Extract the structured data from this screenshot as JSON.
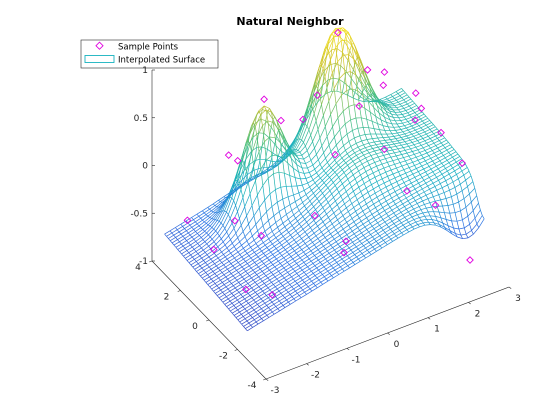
{
  "chart_data": {
    "type": "surface",
    "title": "Natural Neighbor",
    "legend": {
      "placement": "top-left",
      "entries": [
        {
          "label": "Sample Points",
          "marker": "diamond",
          "color": "#e000e0"
        },
        {
          "label": "Interpolated Surface",
          "marker": "line",
          "color": "#17b3bf"
        }
      ]
    },
    "xlim": [
      -3,
      3
    ],
    "ylim": [
      -4,
      4
    ],
    "zlim": [
      -1,
      1
    ],
    "x_ticks": [
      "-3",
      "-2",
      "-1",
      "0",
      "1",
      "2",
      "3"
    ],
    "y_ticks": [
      "-4",
      "-2",
      "0",
      "2",
      "4"
    ],
    "z_ticks": [
      "-1",
      "-0.5",
      "0",
      "0.5",
      "1"
    ],
    "colormap": [
      "#3e26a8",
      "#2c73e4",
      "#18b1c0",
      "#4ec07b",
      "#c9c131",
      "#f5e01f"
    ],
    "sample_points": [
      {
        "x": -2.9,
        "y": 1.8,
        "z": -0.25
      },
      {
        "x": -2.6,
        "y": 0.8,
        "z": -0.45
      },
      {
        "x": -2.3,
        "y": -0.6,
        "z": -0.7
      },
      {
        "x": -2.0,
        "y": -1.6,
        "z": -0.65
      },
      {
        "x": -1.8,
        "y": 1.6,
        "z": -0.4
      },
      {
        "x": -1.5,
        "y": 0.6,
        "z": -0.45
      },
      {
        "x": -1.6,
        "y": 2.6,
        "z": 0.1
      },
      {
        "x": -1.2,
        "y": 3.1,
        "z": -0.1
      },
      {
        "x": -0.9,
        "y": 2.1,
        "z": 0.65
      },
      {
        "x": -0.8,
        "y": 1.2,
        "z": 0.55
      },
      {
        "x": -0.6,
        "y": -0.6,
        "z": -0.2
      },
      {
        "x": -0.3,
        "y": -1.8,
        "z": -0.45
      },
      {
        "x": 0.2,
        "y": 2.5,
        "z": 0.2
      },
      {
        "x": 0.5,
        "y": 1.1,
        "z": 0.0
      },
      {
        "x": 0.1,
        "y": -0.8,
        "z": -0.55
      },
      {
        "x": 0.8,
        "y": 3.2,
        "z": 0.25
      },
      {
        "x": 1.1,
        "y": 2.6,
        "z": 0.95
      },
      {
        "x": 1.2,
        "y": 1.4,
        "z": 0.35
      },
      {
        "x": 1.4,
        "y": 0.2,
        "z": 0.05
      },
      {
        "x": 1.5,
        "y": -1.1,
        "z": -0.2
      },
      {
        "x": 1.9,
        "y": 2.8,
        "z": 0.4
      },
      {
        "x": 2.0,
        "y": 1.9,
        "z": 0.5
      },
      {
        "x": 2.3,
        "y": 0.6,
        "z": 0.15
      },
      {
        "x": 2.1,
        "y": -1.4,
        "z": -0.4
      },
      {
        "x": 2.6,
        "y": -2.4,
        "z": -0.9
      },
      {
        "x": 2.7,
        "y": 1.3,
        "z": 0.1
      },
      {
        "x": 2.8,
        "y": 0.2,
        "z": 0.0
      },
      {
        "x": 2.9,
        "y": -1.0,
        "z": -0.15
      },
      {
        "x": 2.95,
        "y": 2.4,
        "z": 0.05
      },
      {
        "x": 2.5,
        "y": 3.4,
        "z": 0.05
      }
    ]
  }
}
